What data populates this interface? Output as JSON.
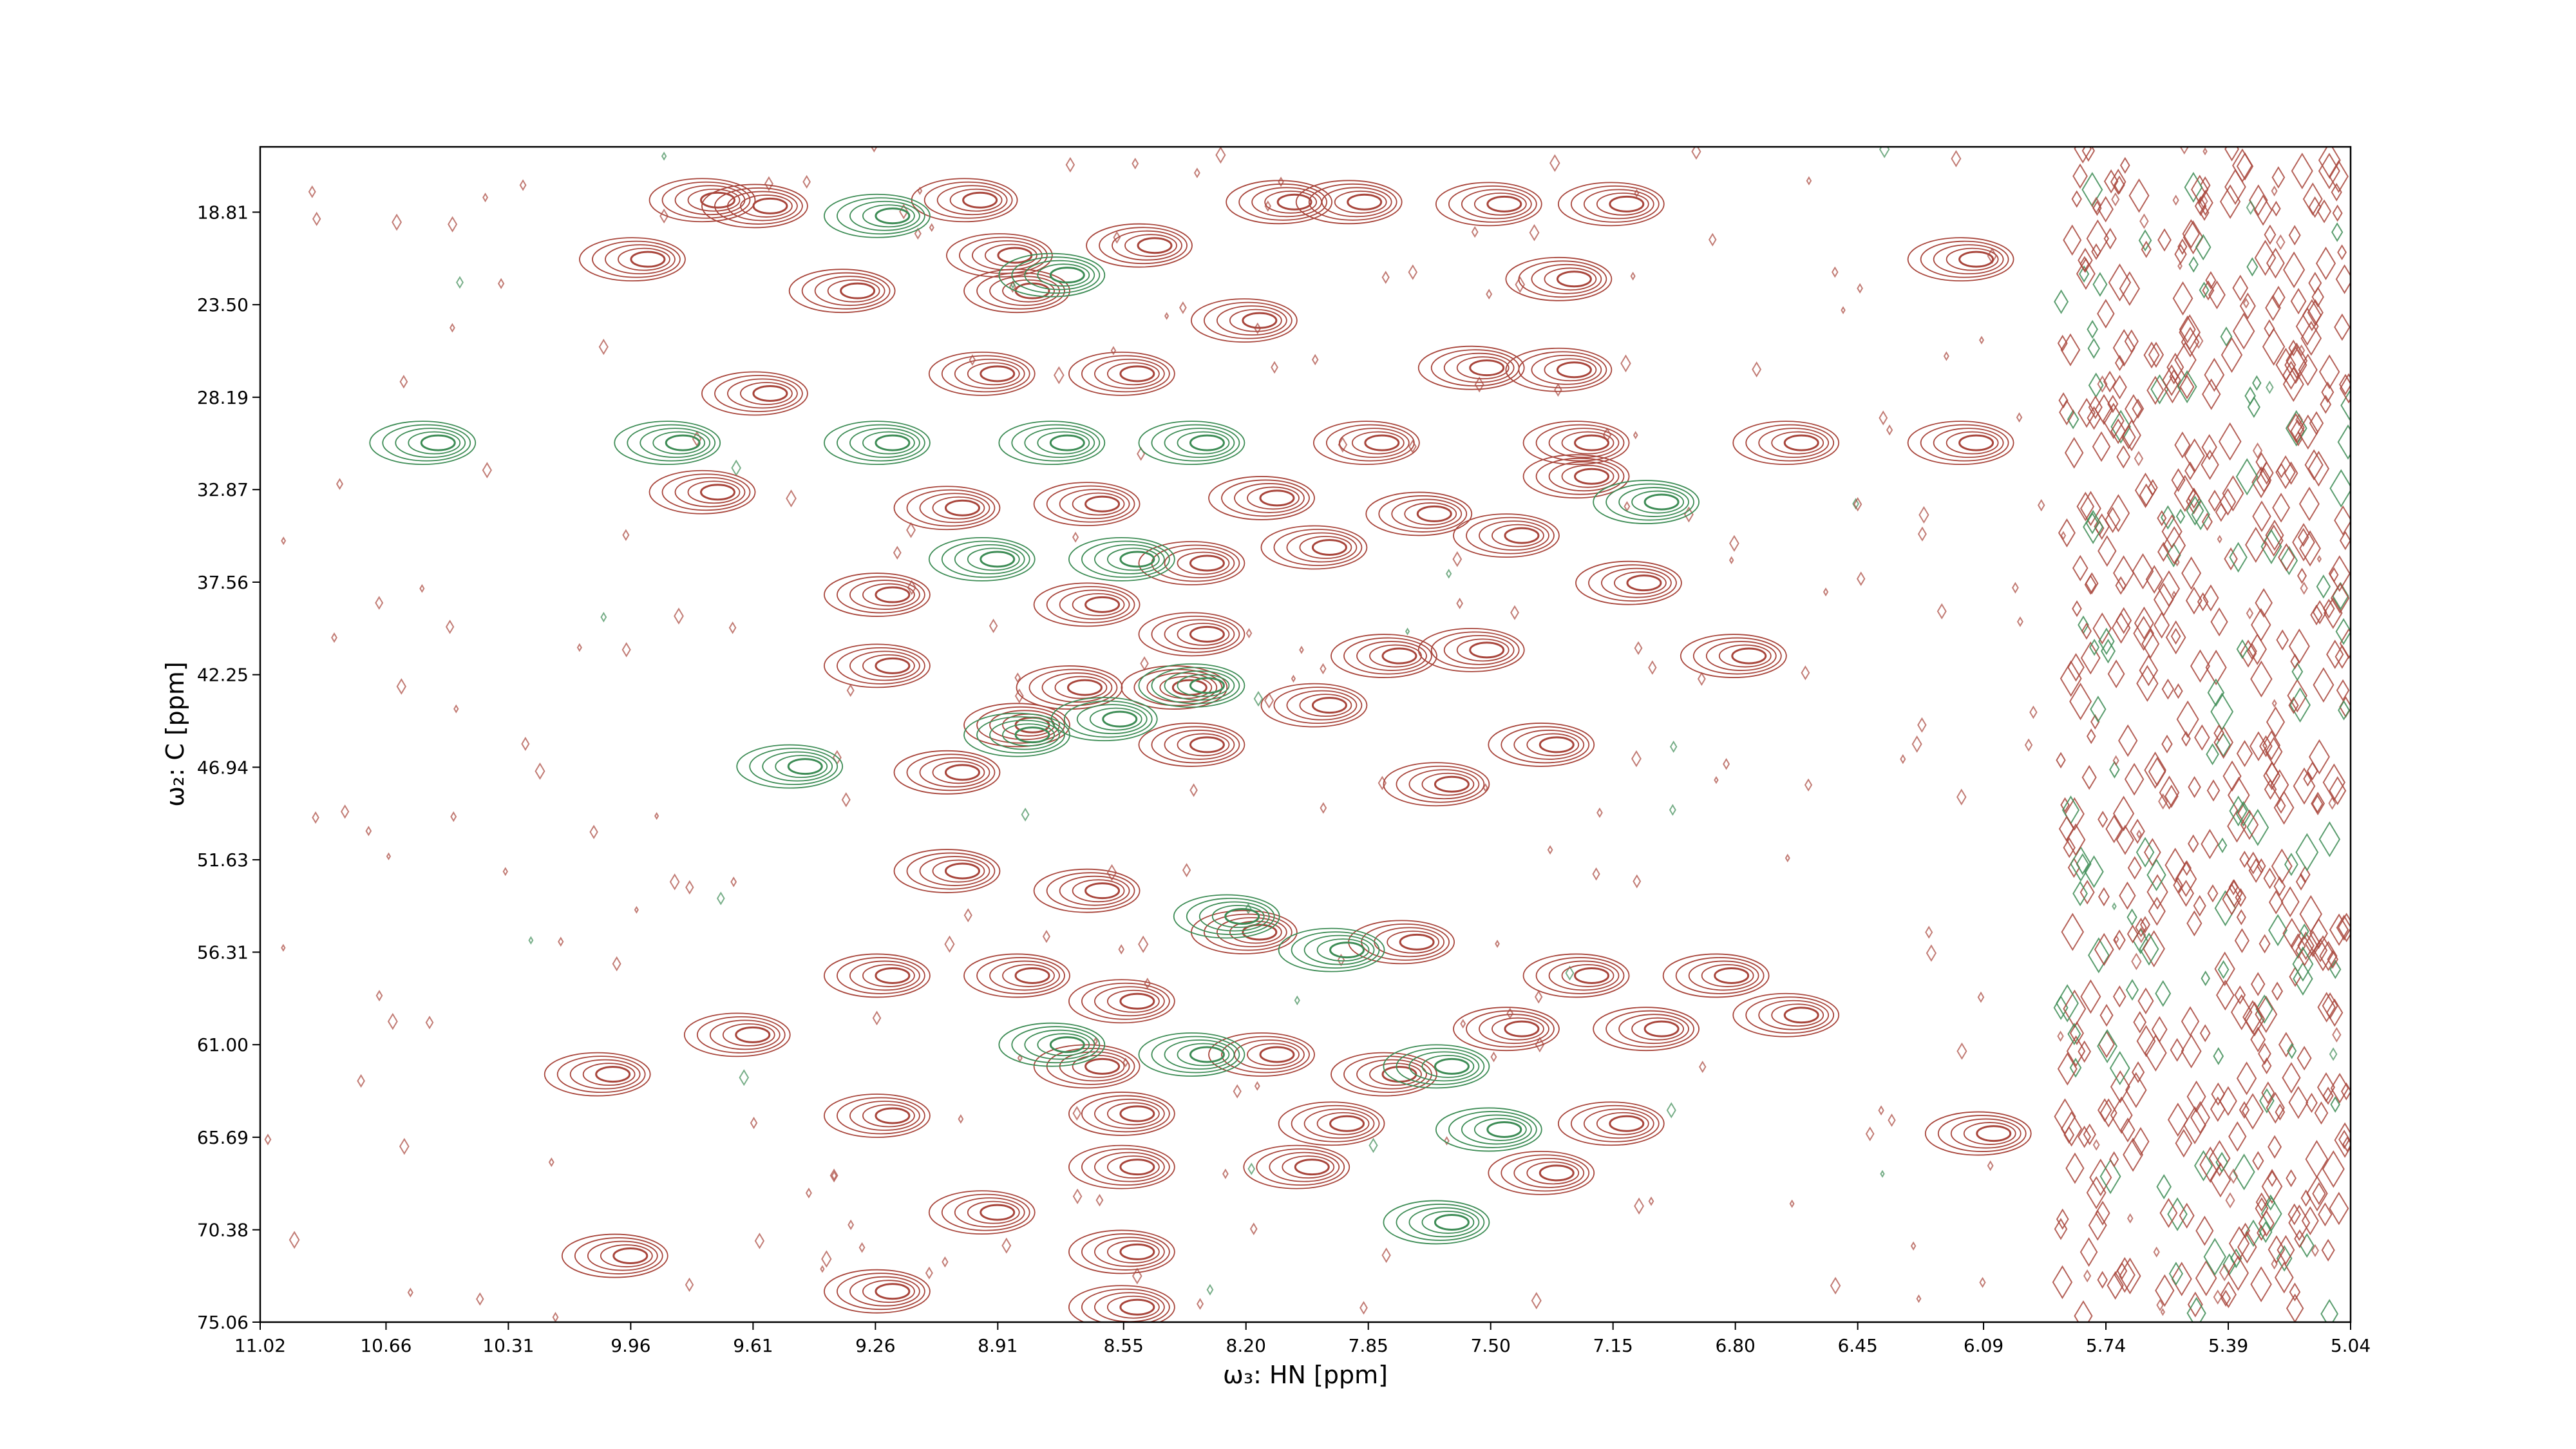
{
  "chart_data": {
    "type": "contour",
    "x_label": "ω₃: HN [ppm]",
    "y_label": "ω₂: C [ppm]",
    "xlim": [
      11.02,
      5.04
    ],
    "ylim": [
      75.06,
      15.5
    ],
    "xticks": [
      11.02,
      10.66,
      10.31,
      9.96,
      9.61,
      9.26,
      8.91,
      8.55,
      {
        "value": 8.2,
        "label": "8.20"
      },
      7.85,
      {
        "value": 7.5,
        "label": "7.50"
      },
      7.15,
      {
        "value": 6.8,
        "label": "6.80"
      },
      6.45,
      6.09,
      5.74,
      5.39,
      5.04
    ],
    "yticks": [
      18.81,
      {
        "value": 23.5,
        "label": "23.50"
      },
      28.19,
      32.87,
      37.56,
      42.25,
      46.94,
      51.63,
      56.31,
      {
        "value": 61.0,
        "label": "61.00"
      },
      65.69,
      70.38,
      75.06
    ],
    "series": [
      {
        "color": "#a8453b",
        "x": [
          9.55,
          9.9,
          9.3,
          8.95,
          8.85,
          8.8,
          8.45,
          8.15,
          8.05,
          7.85,
          7.45,
          7.1,
          7.25,
          6.1,
          8.9,
          8.5,
          7.5,
          7.25,
          9.55,
          9.7,
          9.0,
          8.6,
          8.1,
          7.65,
          7.2,
          7.4,
          7.05,
          7.95,
          8.3,
          9.2,
          8.6,
          8.3,
          7.75,
          7.5,
          6.75,
          9.2,
          8.65,
          8.35,
          7.95,
          8.8,
          8.3,
          9.0,
          7.6,
          7.3,
          9.0,
          8.6,
          8.15,
          7.7,
          9.2,
          8.8,
          8.5,
          7.2,
          6.8,
          6.6,
          8.6,
          8.1,
          7.75,
          7.4,
          7.0,
          9.2,
          8.5,
          7.9,
          7.1,
          8.5,
          8.0,
          7.3,
          8.9,
          8.5,
          9.2,
          8.5,
          6.05,
          9.95,
          10.0,
          9.6,
          9.7,
          7.8,
          7.2,
          6.6,
          6.1
        ],
        "y": [
          18.5,
          21.2,
          22.8,
          18.2,
          21.0,
          22.8,
          20.5,
          24.3,
          18.3,
          18.3,
          18.4,
          18.4,
          22.2,
          21.2,
          27.0,
          27.0,
          26.7,
          26.8,
          28.0,
          33.0,
          33.8,
          33.6,
          33.3,
          34.1,
          32.2,
          35.2,
          37.6,
          35.8,
          36.6,
          38.2,
          38.7,
          40.2,
          41.3,
          41.0,
          41.3,
          41.8,
          42.9,
          42.9,
          43.8,
          44.8,
          45.8,
          47.2,
          47.8,
          45.8,
          52.2,
          53.2,
          55.3,
          55.8,
          57.5,
          57.5,
          58.8,
          57.5,
          57.5,
          59.5,
          62.1,
          61.5,
          62.5,
          60.2,
          60.2,
          64.6,
          64.5,
          65.0,
          65.0,
          67.2,
          67.2,
          67.5,
          69.5,
          71.5,
          73.5,
          74.3,
          65.5,
          71.7,
          62.5,
          60.5,
          18.2,
          30.5,
          30.5,
          30.5,
          30.5
        ]
      },
      {
        "color": "#3d8c55",
        "x": [
          10.5,
          9.8,
          9.2,
          8.7,
          8.3,
          8.9,
          8.5,
          9.45,
          8.8,
          8.55,
          9.2,
          8.7,
          8.3,
          7.9,
          7.6,
          7.45,
          8.3,
          8.7,
          7.6,
          8.2,
          7.0
        ],
        "y": [
          30.5,
          30.5,
          30.5,
          30.5,
          30.5,
          36.4,
          36.4,
          46.9,
          45.3,
          44.5,
          19.0,
          22.0,
          42.8,
          56.2,
          62.1,
          65.3,
          61.5,
          61.0,
          70.0,
          54.5,
          33.5
        ]
      }
    ]
  }
}
